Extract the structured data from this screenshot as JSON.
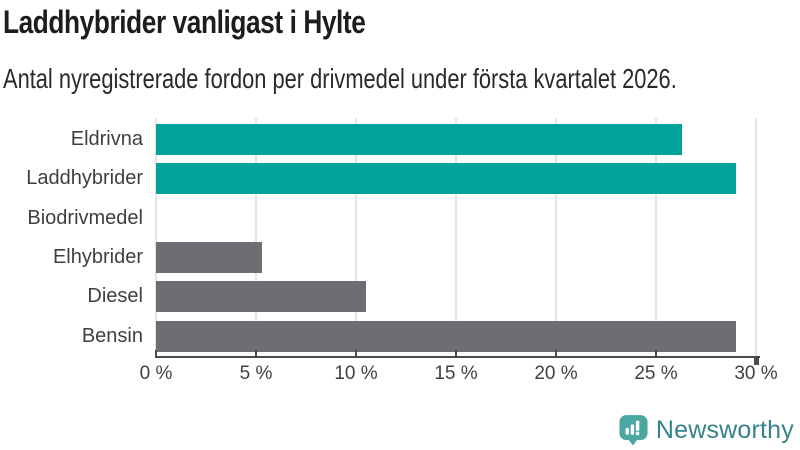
{
  "chart_data": {
    "type": "bar",
    "orientation": "horizontal",
    "title": "Laddhybrider vanligast i Hylte",
    "subtitle": "Antal nyregistrerade fordon per drivmedel under första kvartalet 2026.",
    "categories": [
      "Eldrivna",
      "Laddhybrider",
      "Biodrivmedel",
      "Elhybrider",
      "Diesel",
      "Bensin"
    ],
    "values": [
      26.3,
      29,
      0,
      5.3,
      10.5,
      29
    ],
    "unit": "%",
    "xlim": [
      0,
      30
    ],
    "x_tick_values": [
      0,
      5,
      10,
      15,
      20,
      25,
      30
    ],
    "x_tick_labels": [
      "0 %",
      "5 %",
      "10 %",
      "15 %",
      "20 %",
      "25 %",
      "30 %"
    ],
    "bar_colors": [
      "#00a39a",
      "#00a39a",
      "#6e6d72",
      "#6e6d72",
      "#6e6d72",
      "#6e6d72"
    ],
    "colors": {
      "highlight": "#00a39a",
      "default_bar": "#6e6d72",
      "gridline": "#e4e4e4",
      "axis": "#4b4b4b",
      "tick_label": "#404040",
      "category_label": "#3f3f3f",
      "title": "#1d1d1b",
      "subtitle": "#2a2a27"
    },
    "grid": true,
    "legend": null
  },
  "logo": {
    "text": "Newsworthy",
    "icon": "newsworthy-speech-bubble-bar-chart-icon",
    "icon_color": "#4aa7a2",
    "text_color": "#35838a"
  }
}
